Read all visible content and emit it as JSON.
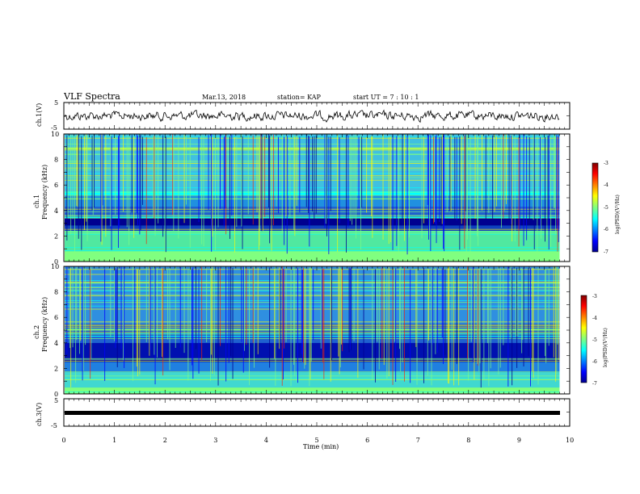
{
  "header": {
    "title": "VLF Spectra",
    "date": "Mar.13, 2018",
    "station": "station= KAP",
    "start": "start  UT =   7 : 10 : 1"
  },
  "chart_data": [
    {
      "type": "line",
      "name": "ch1-waveform",
      "ylabel": "ch.1(V)",
      "ylim": [
        -5,
        5
      ],
      "yticks": [
        "5",
        "-5"
      ],
      "x_range_min": [
        0,
        9.8
      ]
    },
    {
      "type": "heatmap",
      "name": "ch1-spectrogram",
      "ylabel": "ch.1\nFrequency (kHz)",
      "ylim": [
        0,
        10
      ],
      "yticks": [
        "0",
        "2",
        "4",
        "6",
        "8",
        "10"
      ],
      "colorbar": {
        "label": "log(PSD)(V²/Hz)",
        "range": [
          -7,
          -3
        ],
        "ticks": [
          "-3",
          "-4",
          "-5",
          "-6",
          "-7"
        ]
      }
    },
    {
      "type": "heatmap",
      "name": "ch2-spectrogram",
      "ylabel": "ch.2\nFrequency (kHz)",
      "ylim": [
        0,
        10
      ],
      "yticks": [
        "0",
        "2",
        "4",
        "6",
        "8",
        "10"
      ],
      "colorbar": {
        "label": "log(PSD)(V²/Hz)",
        "range": [
          -7,
          -3
        ],
        "ticks": [
          "-3",
          "-4",
          "-5",
          "-6",
          "-7"
        ]
      }
    },
    {
      "type": "line",
      "name": "ch3-waveform",
      "ylabel": "ch.3(V)",
      "ylim": [
        -5,
        5
      ],
      "yticks": [
        "5",
        "-5"
      ],
      "values_constant": 0
    }
  ],
  "xaxis": {
    "label": "Time  (min)",
    "ticks": [
      "0",
      "1",
      "2",
      "3",
      "4",
      "5",
      "6",
      "7",
      "8",
      "9",
      "10"
    ],
    "xlim": [
      0,
      10
    ]
  },
  "labels": {
    "ch1_v": "ch.1(V)",
    "ch1_a": "ch.1",
    "ch1_b": "Frequency (kHz)",
    "ch2_a": "ch.2",
    "ch2_b": "Frequency (kHz)",
    "ch3_v": "ch.3(V)",
    "cb": "log(PSD)(V²/Hz)"
  },
  "colors": {
    "jet": [
      "#00008f",
      "#0000ff",
      "#00ffff",
      "#80ff80",
      "#ffff00",
      "#ff0000",
      "#800000"
    ]
  }
}
